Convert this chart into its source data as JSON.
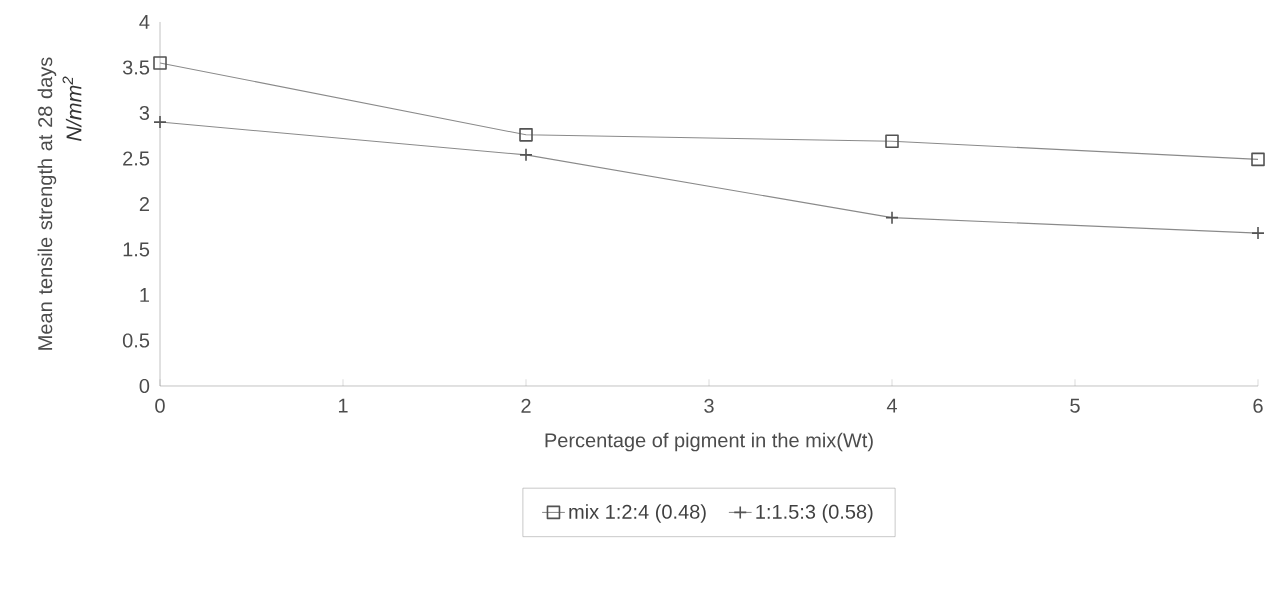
{
  "chart_data": {
    "type": "line",
    "xlabel": "Percentage of pigment in the mix(Wt)",
    "ylabel": "Mean tensile strength at 28 days",
    "annotations": [
      "N/mm$^{2}$"
    ],
    "x": [
      0,
      2,
      4,
      6
    ],
    "series": [
      {
        "name": "mix 1:2:4 (0.48)",
        "color": "#8a8a8a",
        "marker": "square",
        "values": [
          3.55,
          2.76,
          2.69,
          2.49
        ]
      },
      {
        "name": "1:1.5:3 (0.58)",
        "color": "#8a8a8a",
        "marker": "cross",
        "values": [
          2.9,
          2.54,
          1.85,
          1.68
        ]
      }
    ],
    "xlim": [
      0,
      6
    ],
    "xticks": [
      0,
      1,
      2,
      3,
      4,
      5,
      6
    ],
    "ylim": [
      0,
      4
    ],
    "yticks": [
      0,
      0.5,
      1,
      1.5,
      2,
      2.5,
      3,
      3.5,
      4
    ],
    "grid": false,
    "legend": "bottom",
    "line_style": "solid"
  }
}
